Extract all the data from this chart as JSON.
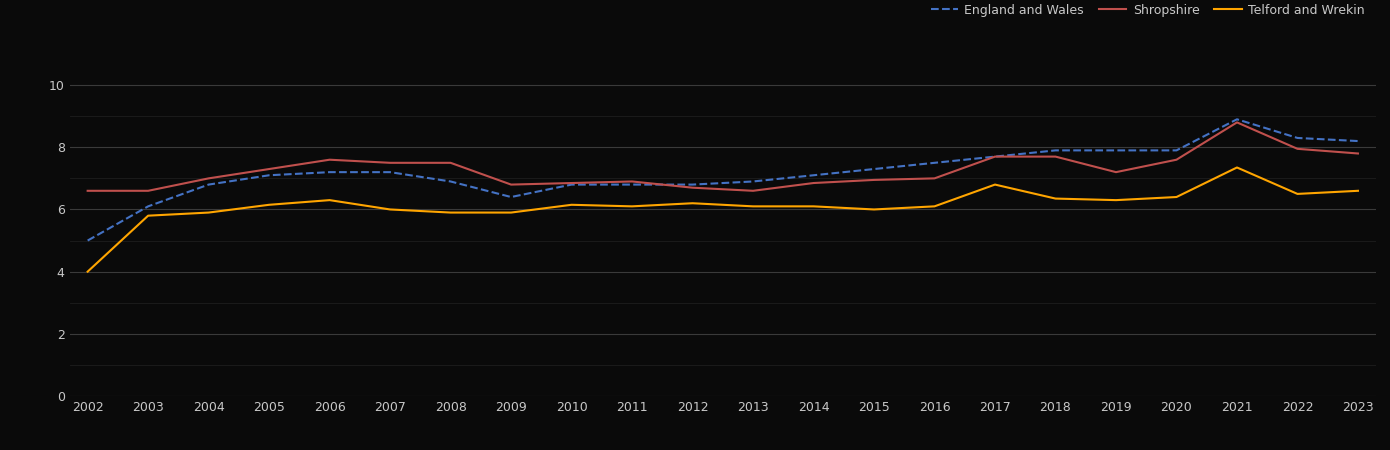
{
  "years": [
    2002,
    2003,
    2004,
    2005,
    2006,
    2007,
    2008,
    2009,
    2010,
    2011,
    2012,
    2013,
    2014,
    2015,
    2016,
    2017,
    2018,
    2019,
    2020,
    2021,
    2022,
    2023
  ],
  "england_wales": [
    5.0,
    6.1,
    6.8,
    7.1,
    7.2,
    7.2,
    6.9,
    6.4,
    6.8,
    6.8,
    6.8,
    6.9,
    7.1,
    7.3,
    7.5,
    7.7,
    7.9,
    7.9,
    7.9,
    8.9,
    8.3,
    8.2
  ],
  "shropshire": [
    6.6,
    6.6,
    7.0,
    7.3,
    7.6,
    7.5,
    7.5,
    6.8,
    6.85,
    6.9,
    6.7,
    6.6,
    6.85,
    6.95,
    7.0,
    7.7,
    7.7,
    7.2,
    7.6,
    8.8,
    7.95,
    7.8
  ],
  "telford": [
    4.0,
    5.8,
    5.9,
    6.15,
    6.3,
    6.0,
    5.9,
    5.9,
    6.15,
    6.1,
    6.2,
    6.1,
    6.1,
    6.0,
    6.1,
    6.8,
    6.35,
    6.3,
    6.4,
    7.35,
    6.5,
    6.6
  ],
  "england_wales_color": "#4472C4",
  "shropshire_color": "#C0504D",
  "telford_color": "#FFA500",
  "background_color": "#0a0a0a",
  "major_grid_color": "#3a3a3a",
  "minor_grid_color": "#1e1e1e",
  "text_color": "#c8c8c8",
  "ylim": [
    0,
    11
  ],
  "yticks_major": [
    0,
    2,
    4,
    6,
    8,
    10
  ],
  "yticks_minor": [
    1,
    3,
    5,
    7,
    9
  ],
  "legend_labels": [
    "England and Wales",
    "Shropshire",
    "Telford and Wrekin"
  ],
  "legend_fontsize": 9,
  "tick_fontsize": 9
}
